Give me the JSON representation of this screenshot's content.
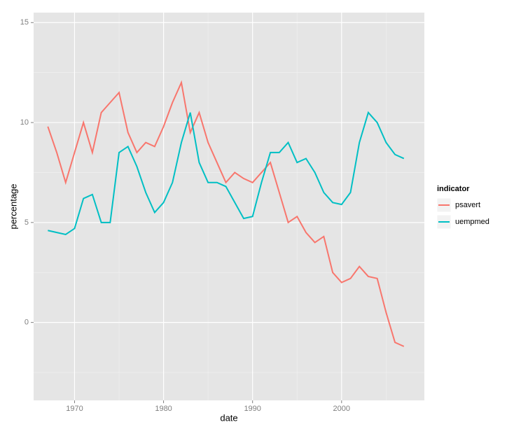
{
  "chart_data": {
    "type": "line",
    "x_label": "date",
    "y_label": "percentage",
    "x": [
      1967,
      1968,
      1969,
      1970,
      1971,
      1972,
      1973,
      1974,
      1975,
      1976,
      1977,
      1978,
      1979,
      1980,
      1981,
      1982,
      1983,
      1984,
      1985,
      1986,
      1987,
      1988,
      1989,
      1990,
      1991,
      1992,
      1993,
      1994,
      1995,
      1996,
      1997,
      1998,
      1999,
      2000,
      2001,
      2002,
      2003,
      2004,
      2005,
      2006,
      2007
    ],
    "series": [
      {
        "name": "psavert",
        "color": "#f8766d",
        "values": [
          9.8,
          8.5,
          7.0,
          8.5,
          10.0,
          8.5,
          10.5,
          11.0,
          11.5,
          9.5,
          8.5,
          9.0,
          8.8,
          9.8,
          11.0,
          12.0,
          9.5,
          10.5,
          9.0,
          8.0,
          7.0,
          7.5,
          7.2,
          7.0,
          7.5,
          8.0,
          6.5,
          5.0,
          5.3,
          4.5,
          4.0,
          4.3,
          2.5,
          2.0,
          2.2,
          2.8,
          2.3,
          2.2,
          0.5,
          -1.0,
          -1.2
        ]
      },
      {
        "name": "uempmed",
        "color": "#00bfc4",
        "values": [
          4.6,
          4.5,
          4.4,
          4.7,
          6.2,
          6.4,
          5.0,
          5.0,
          8.5,
          8.8,
          7.8,
          6.5,
          5.5,
          6.0,
          7.0,
          9.0,
          10.5,
          8.0,
          7.0,
          7.0,
          6.8,
          6.0,
          5.2,
          5.3,
          7.0,
          8.5,
          8.5,
          9.0,
          8.0,
          8.2,
          7.5,
          6.5,
          6.0,
          5.9,
          6.5,
          9.0,
          10.5,
          10.0,
          9.0,
          8.4,
          8.2
        ]
      }
    ],
    "legend_title": "indicator",
    "legend": "right",
    "xlim": [
      1965.4,
      2009.3
    ],
    "xticks": [
      1970,
      1980,
      1990,
      2000
    ],
    "ylim": [
      -3.9,
      15.5
    ],
    "yticks": [
      0,
      5,
      10,
      15
    ],
    "grid": true
  }
}
